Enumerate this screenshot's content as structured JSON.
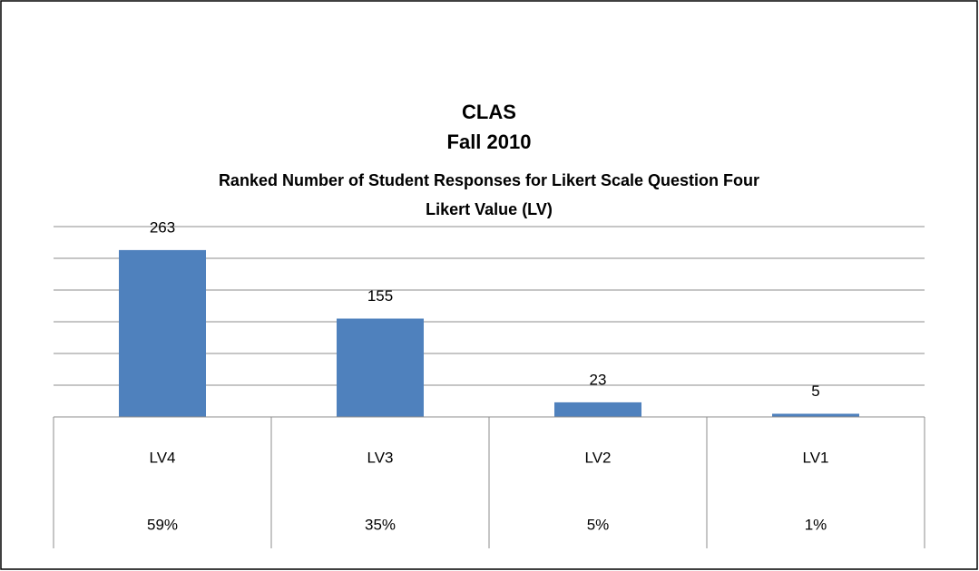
{
  "chart_data": {
    "type": "bar",
    "title": "CLAS",
    "subtitle": "Fall 2010",
    "description": "Ranked Number of Student Responses for Likert Scale Question Four",
    "x_label": "Likert Value (LV)",
    "categories": [
      "LV4",
      "LV3",
      "LV2",
      "LV1"
    ],
    "category_shares": [
      "59%",
      "35%",
      "5%",
      "1%"
    ],
    "values": [
      263,
      155,
      23,
      5
    ],
    "color": "#4f81bd",
    "ylim": [
      0,
      300
    ],
    "yticks": [
      0,
      50,
      100,
      150,
      200,
      250,
      300
    ],
    "grid": true
  }
}
